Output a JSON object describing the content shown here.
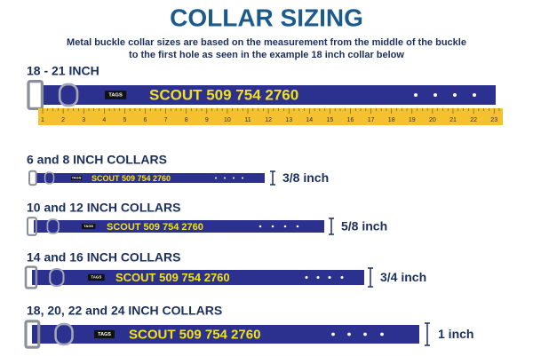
{
  "header": {
    "title": "COLLAR SIZING",
    "subtitle_lines": [
      "Metal buckle collar sizes are based on the measurement from the middle of the buckle",
      "to the first hole as seen in the example 18 inch collar below"
    ]
  },
  "example": {
    "label": "18 - 21 INCH",
    "tag": "TAGS",
    "name": "SCOUT 509 754 2760",
    "ruler": [
      1,
      2,
      3,
      4,
      5,
      6,
      7,
      8,
      9,
      10,
      11,
      12,
      13,
      14,
      15,
      16,
      17,
      18,
      19,
      20,
      21,
      22,
      23
    ]
  },
  "sizes": [
    {
      "label": "6 and 8 INCH COLLARS",
      "tag": "TAGS",
      "name": "SCOUT 509 754 2760",
      "width": "3/8 inch"
    },
    {
      "label": "10 and 12 INCH COLLARS",
      "tag": "TAGS",
      "name": "SCOUT 509 754 2760",
      "width": "5/8 inch"
    },
    {
      "label": "14 and 16 INCH COLLARS",
      "tag": "TAGS",
      "name": "SCOUT 509 754 2760",
      "width": "3/4 inch"
    },
    {
      "label": "18, 20, 22 and 24 INCH COLLARS",
      "tag": "TAGS",
      "name": "SCOUT 509 754 2760",
      "width": "1 inch"
    }
  ]
}
